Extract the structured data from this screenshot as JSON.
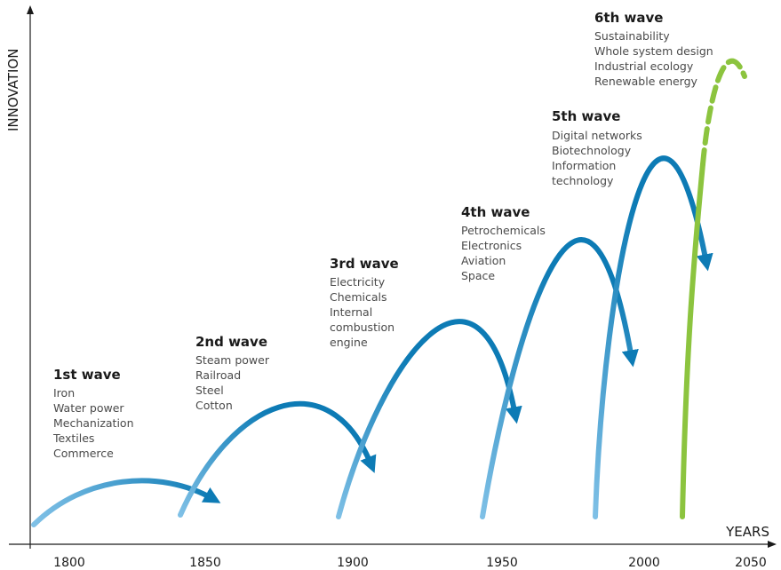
{
  "axes": {
    "y_label": "INNOVATION",
    "x_label": "YEARS",
    "ticks": [
      "1800",
      "1850",
      "1900",
      "1950",
      "2000",
      "2050"
    ]
  },
  "waves": [
    {
      "title": "1st wave",
      "items": [
        "Iron",
        "Water power",
        "Mechanization",
        "Textiles",
        "Commerce"
      ]
    },
    {
      "title": "2nd wave",
      "items": [
        "Steam power",
        "Railroad",
        "Steel",
        "Cotton"
      ]
    },
    {
      "title": "3rd wave",
      "items": [
        "Electricity",
        "Chemicals",
        "Internal",
        "combustion",
        "engine"
      ]
    },
    {
      "title": "4th wave",
      "items": [
        "Petrochemicals",
        "Electronics",
        "Aviation",
        "Space"
      ]
    },
    {
      "title": "5th wave",
      "items": [
        "Digital networks",
        "Biotechnology",
        "Information",
        "technology"
      ]
    },
    {
      "title": "6th wave",
      "items": [
        "Sustainability",
        "Whole system design",
        "Industrial ecology",
        "Renewable energy"
      ]
    }
  ],
  "colors": {
    "wave_dark": "#0d7bb5",
    "wave_light": "#7fc0e6",
    "sixth_wave": "#8cc43f",
    "axis": "#1a1a1a"
  }
}
